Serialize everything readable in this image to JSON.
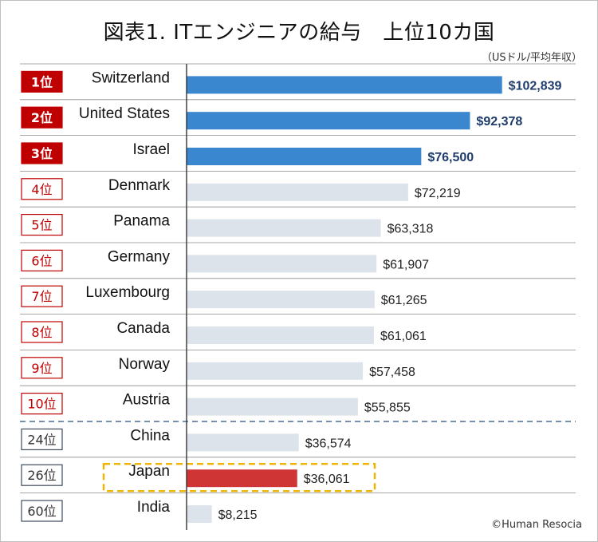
{
  "page": {
    "title": "図表1. ITエンジニアの給与　上位10カ国",
    "unit_note": "（USドル/平均年収）",
    "credit": "©Human Resocia"
  },
  "colors": {
    "top3_bar": "#3a87d0",
    "other_bar": "#dde3ea",
    "japan_bar": "#d03535",
    "rank_red": "#c00000",
    "rank_dark": "#3c4a5c",
    "highlight_box": "#f0b400",
    "divider": "#4a6b99"
  },
  "chart_data": {
    "type": "bar",
    "orientation": "horizontal",
    "title": "図表1. ITエンジニアの給与　上位10カ国",
    "unit": "USドル/平均年収",
    "xlim": [
      0,
      105000
    ],
    "rows": [
      {
        "rank": "1位",
        "country": "Switzerland",
        "value": 102839,
        "label": "$102,839",
        "style": "top"
      },
      {
        "rank": "2位",
        "country": "United States",
        "value": 92378,
        "label": "$92,378",
        "style": "top"
      },
      {
        "rank": "3位",
        "country": "Israel",
        "value": 76500,
        "label": "$76,500",
        "style": "top"
      },
      {
        "rank": "4位",
        "country": "Denmark",
        "value": 72219,
        "label": "$72,219",
        "style": "top10"
      },
      {
        "rank": "5位",
        "country": "Panama",
        "value": 63318,
        "label": "$63,318",
        "style": "top10"
      },
      {
        "rank": "6位",
        "country": "Germany",
        "value": 61907,
        "label": "$61,907",
        "style": "top10"
      },
      {
        "rank": "7位",
        "country": "Luxembourg",
        "value": 61265,
        "label": "$61,265",
        "style": "top10"
      },
      {
        "rank": "8位",
        "country": "Canada",
        "value": 61061,
        "label": "$61,061",
        "style": "top10"
      },
      {
        "rank": "9位",
        "country": "Norway",
        "value": 57458,
        "label": "$57,458",
        "style": "top10"
      },
      {
        "rank": "10位",
        "country": "Austria",
        "value": 55855,
        "label": "$55,855",
        "style": "top10"
      },
      {
        "rank": "24位",
        "country": "China",
        "value": 36574,
        "label": "$36,574",
        "style": "other"
      },
      {
        "rank": "26位",
        "country": "Japan",
        "value": 36061,
        "label": "$36,061",
        "style": "japan"
      },
      {
        "rank": "60位",
        "country": "India",
        "value": 8215,
        "label": "$8,215",
        "style": "other"
      }
    ]
  }
}
